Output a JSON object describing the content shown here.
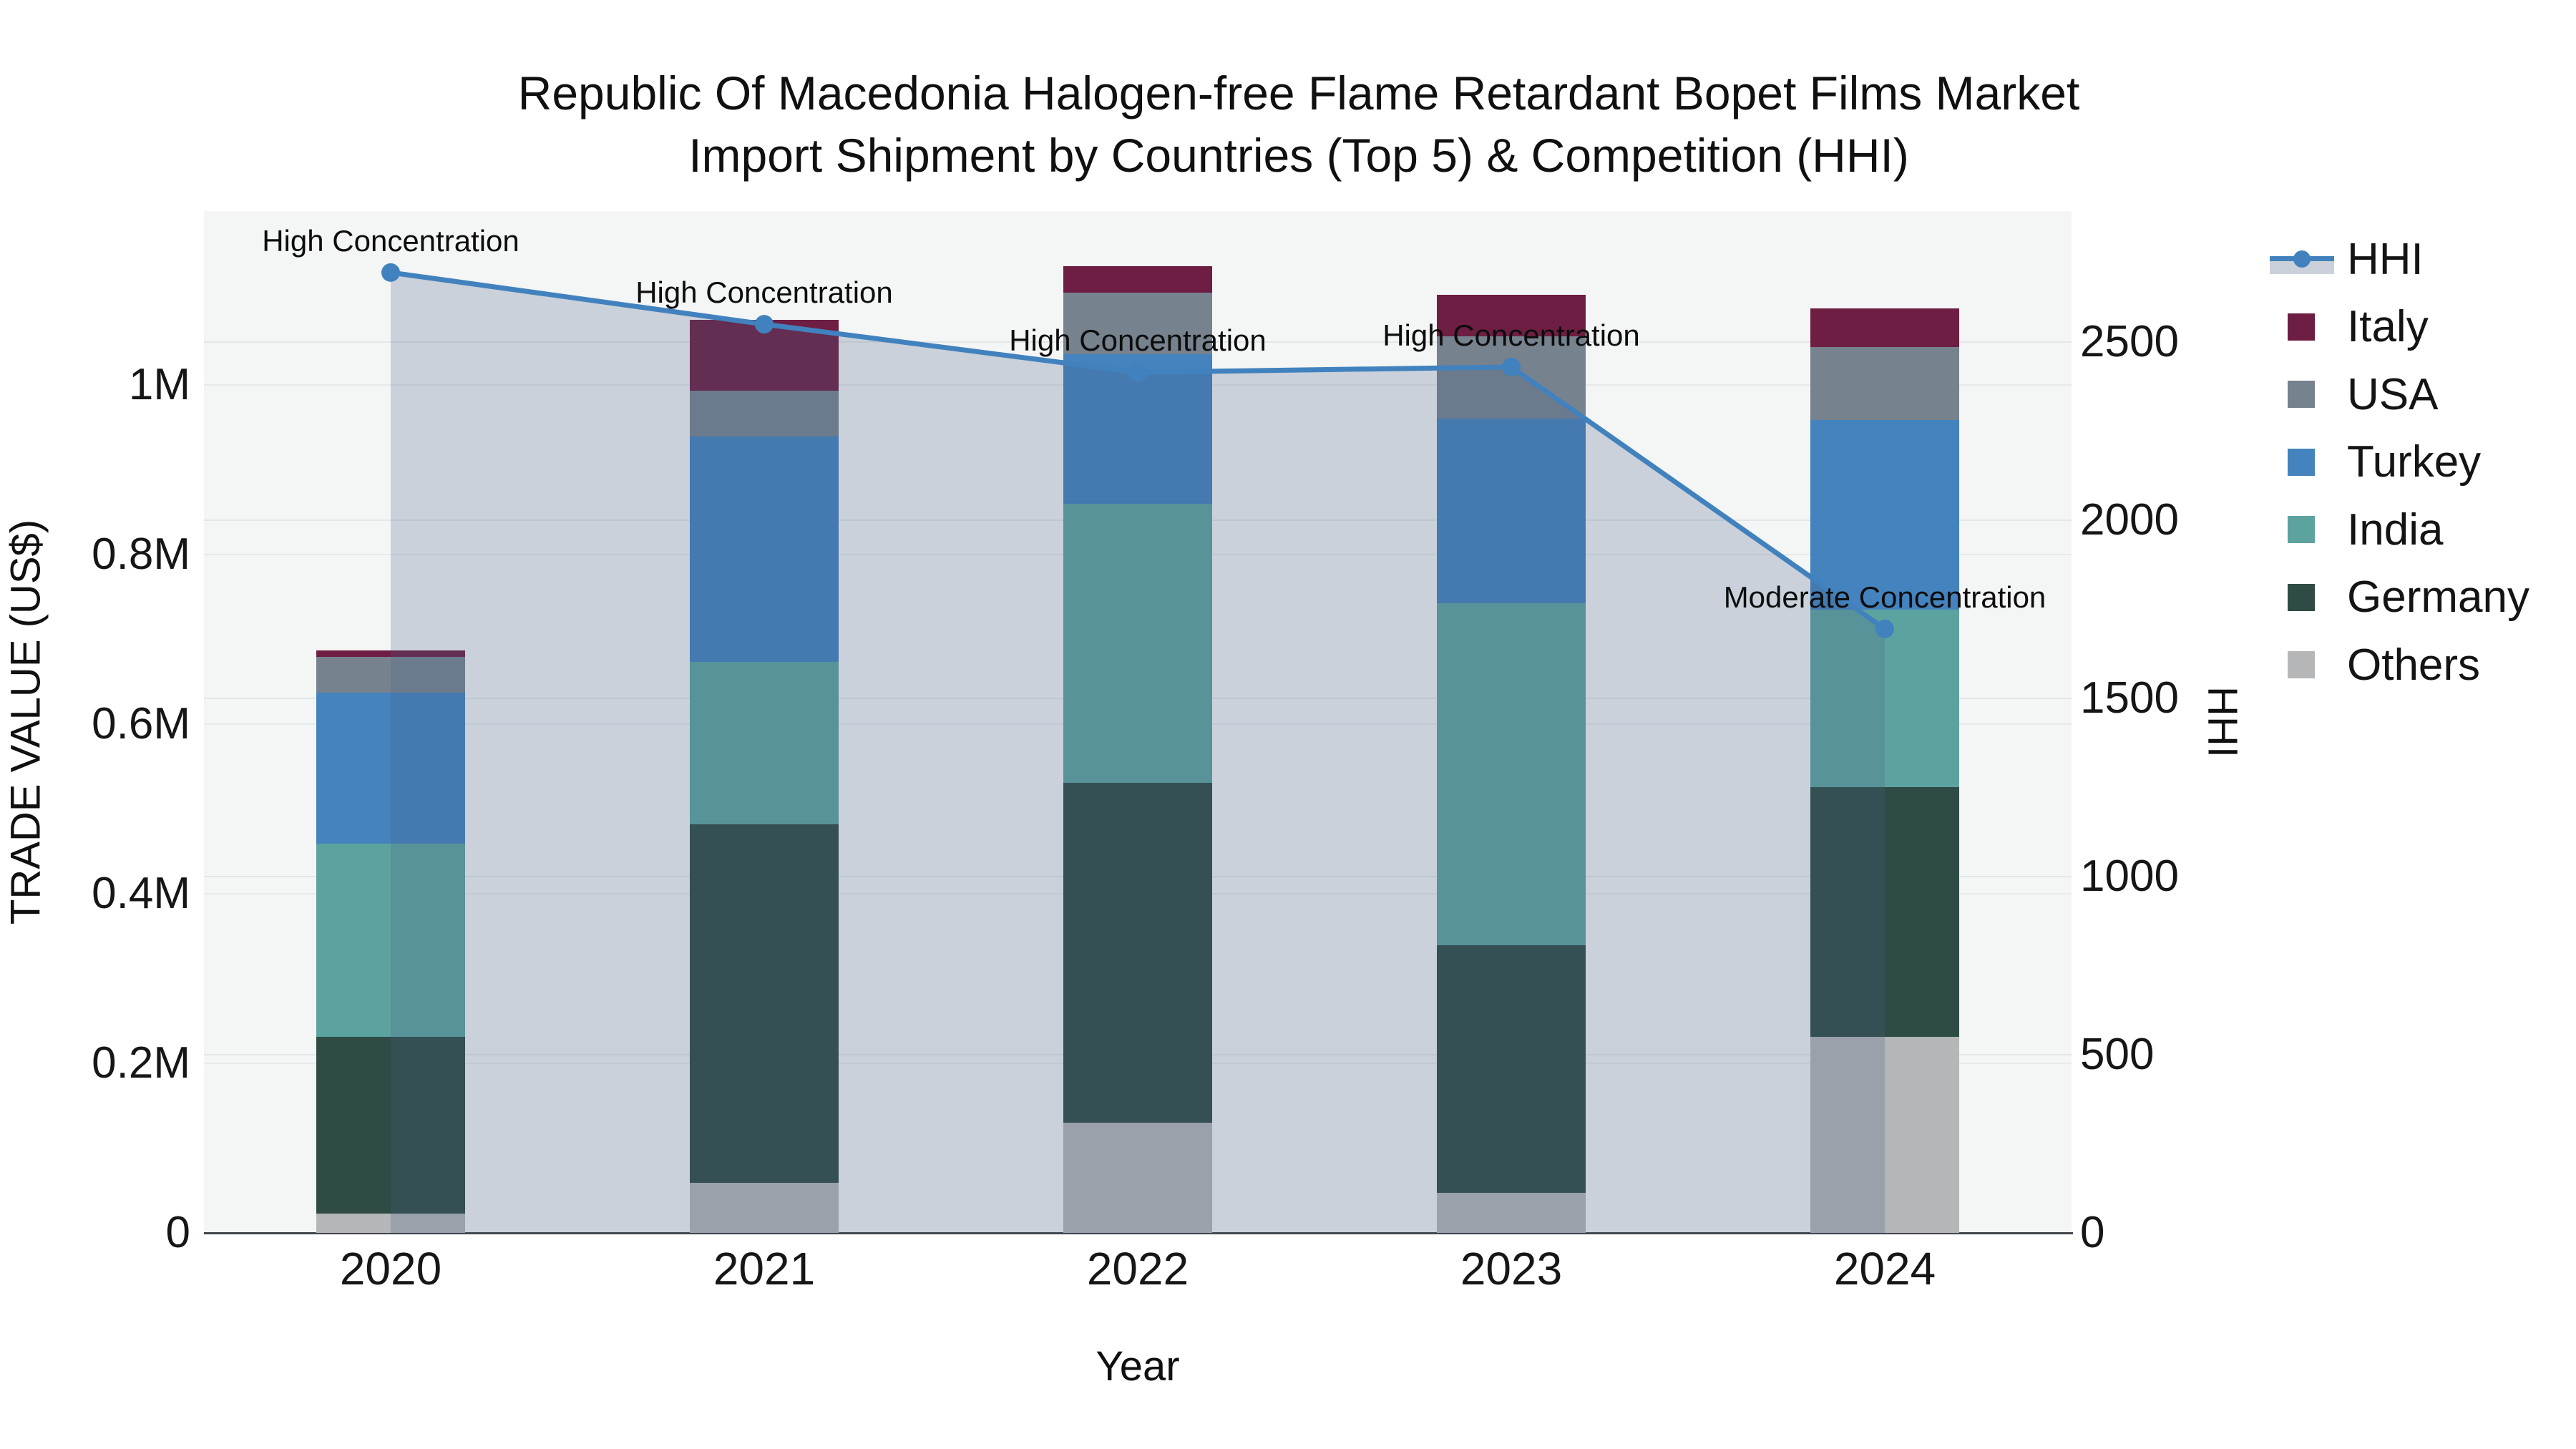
{
  "title_line1": "Republic Of Macedonia Halogen-free Flame Retardant Bopet Films Market",
  "title_line2": "Import Shipment by Countries (Top 5) & Competition (HHI)",
  "y1_axis_title": "TRADE VALUE (US$)",
  "y2_axis_title": "HHI",
  "x_axis_title": "Year",
  "colors": {
    "italy": "#6d1e42",
    "usa": "#77828f",
    "turkey": "#4483be",
    "india": "#5ca3a0",
    "germany": "#2e4c45",
    "others": "#b4b6b7",
    "hhi_line": "#4182be",
    "hhi_fill": "rgba(73,96,134,0.24)",
    "plot_bg": "#f4f5f5",
    "grid_y1": "#e7e9eb",
    "grid_y2": "#e3e6e9"
  },
  "legend": [
    {
      "id": "hhi",
      "label": "HHI",
      "kind": "line"
    },
    {
      "id": "italy",
      "label": "Italy",
      "kind": "swatch"
    },
    {
      "id": "usa",
      "label": "USA",
      "kind": "swatch"
    },
    {
      "id": "turkey",
      "label": "Turkey",
      "kind": "swatch"
    },
    {
      "id": "india",
      "label": "India",
      "kind": "swatch"
    },
    {
      "id": "germany",
      "label": "Germany",
      "kind": "swatch"
    },
    {
      "id": "others",
      "label": "Others",
      "kind": "swatch"
    }
  ],
  "chart_data": {
    "type": "bar+line",
    "title": "Republic Of Macedonia Halogen-free Flame Retardant Bopet Films Market Import Shipment by Countries (Top 5) & Competition (HHI)",
    "categories": [
      "2020",
      "2021",
      "2022",
      "2023",
      "2024"
    ],
    "stack_order_bottom_to_top": [
      "others",
      "germany",
      "india",
      "turkey",
      "usa",
      "italy"
    ],
    "series": [
      {
        "id": "others",
        "name": "Others",
        "values_usd_m": [
          0.023,
          0.059,
          0.13,
          0.047,
          0.231
        ]
      },
      {
        "id": "germany",
        "name": "Germany",
        "values_usd_m": [
          0.208,
          0.423,
          0.401,
          0.292,
          0.295
        ]
      },
      {
        "id": "india",
        "name": "India",
        "values_usd_m": [
          0.228,
          0.191,
          0.329,
          0.404,
          0.209
        ]
      },
      {
        "id": "turkey",
        "name": "Turkey",
        "values_usd_m": [
          0.178,
          0.266,
          0.176,
          0.217,
          0.224
        ]
      },
      {
        "id": "usa",
        "name": "USA",
        "values_usd_m": [
          0.042,
          0.054,
          0.073,
          0.097,
          0.086
        ]
      },
      {
        "id": "italy",
        "name": "Italy",
        "values_usd_m": [
          0.008,
          0.084,
          0.031,
          0.049,
          0.045
        ]
      }
    ],
    "hhi_series": {
      "name": "HHI",
      "values": [
        2695,
        2550,
        2415,
        2430,
        1695
      ]
    },
    "annotations": [
      {
        "year": "2020",
        "text": "High Concentration"
      },
      {
        "year": "2021",
        "text": "High Concentration"
      },
      {
        "year": "2022",
        "text": "High Concentration"
      },
      {
        "year": "2023",
        "text": "High Concentration"
      },
      {
        "year": "2024",
        "text": "Moderate Concentration"
      }
    ],
    "y1_ticks": [
      {
        "label": "0",
        "value_m": 0
      },
      {
        "label": "0.2M",
        "value_m": 0.2
      },
      {
        "label": "0.4M",
        "value_m": 0.4
      },
      {
        "label": "0.6M",
        "value_m": 0.6
      },
      {
        "label": "0.8M",
        "value_m": 0.8
      },
      {
        "label": "1M",
        "value_m": 1.0
      }
    ],
    "y2_ticks": [
      {
        "label": "0",
        "value": 0
      },
      {
        "label": "500",
        "value": 500
      },
      {
        "label": "1000",
        "value": 1000
      },
      {
        "label": "1500",
        "value": 1500
      },
      {
        "label": "2000",
        "value": 2000
      },
      {
        "label": "2500",
        "value": 2500
      }
    ],
    "ylabel_left": "TRADE VALUE (US$)",
    "ylabel_right": "HHI",
    "xlabel": "Year",
    "y1_range_usd_m": [
      0,
      1.205
    ],
    "y2_range": [
      0,
      2868
    ],
    "grid": true,
    "legend_position": "right"
  }
}
